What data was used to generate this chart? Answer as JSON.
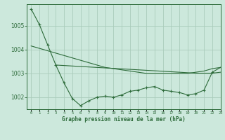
{
  "bg_color": "#cce8dc",
  "grid_color": "#aaccbb",
  "line_color": "#2d6b3a",
  "text_color": "#2d6b3a",
  "xlabel": "Graphe pression niveau de la mer (hPa)",
  "ylim": [
    1001.5,
    1005.9
  ],
  "xlim": [
    -0.5,
    23
  ],
  "yticks": [
    1002,
    1003,
    1004,
    1005
  ],
  "xticks": [
    0,
    1,
    2,
    3,
    4,
    5,
    6,
    7,
    8,
    9,
    10,
    11,
    12,
    13,
    14,
    15,
    16,
    17,
    18,
    19,
    20,
    21,
    22,
    23
  ],
  "series1_x": [
    0,
    1,
    2,
    3,
    4,
    5,
    6,
    7,
    8,
    9,
    10,
    11,
    12,
    13,
    14,
    15,
    16,
    17,
    18,
    19,
    20,
    21,
    22,
    23
  ],
  "series1_y": [
    1005.7,
    1005.05,
    1004.2,
    1003.35,
    1002.6,
    1001.95,
    1001.65,
    1001.85,
    1002.0,
    1002.05,
    1002.0,
    1002.1,
    1002.25,
    1002.3,
    1002.4,
    1002.45,
    1002.3,
    1002.25,
    1002.2,
    1002.1,
    1002.15,
    1002.3,
    1003.05,
    1003.25
  ],
  "series2_x": [
    0,
    1,
    2,
    3,
    4,
    5,
    6,
    7,
    8,
    9,
    10,
    11,
    12,
    13,
    14,
    15,
    16,
    17,
    18,
    19,
    20,
    21,
    22,
    23
  ],
  "series2_y": [
    1004.15,
    1004.05,
    1003.95,
    1003.85,
    1003.75,
    1003.65,
    1003.55,
    1003.45,
    1003.35,
    1003.25,
    1003.2,
    1003.15,
    1003.1,
    1003.05,
    1003.0,
    1003.0,
    1003.0,
    1003.0,
    1003.0,
    1003.0,
    1003.05,
    1003.1,
    1003.2,
    1003.25
  ],
  "series3_x": [
    3,
    4,
    5,
    6,
    7,
    8,
    9,
    10,
    11,
    12,
    13,
    14,
    15,
    16,
    17,
    18,
    19,
    20,
    21,
    22,
    23
  ],
  "series3_y": [
    1003.35,
    1003.33,
    1003.31,
    1003.29,
    1003.27,
    1003.25,
    1003.23,
    1003.21,
    1003.19,
    1003.17,
    1003.15,
    1003.13,
    1003.11,
    1003.09,
    1003.07,
    1003.05,
    1003.03,
    1003.01,
    1003.01,
    1003.01,
    1003.05
  ]
}
